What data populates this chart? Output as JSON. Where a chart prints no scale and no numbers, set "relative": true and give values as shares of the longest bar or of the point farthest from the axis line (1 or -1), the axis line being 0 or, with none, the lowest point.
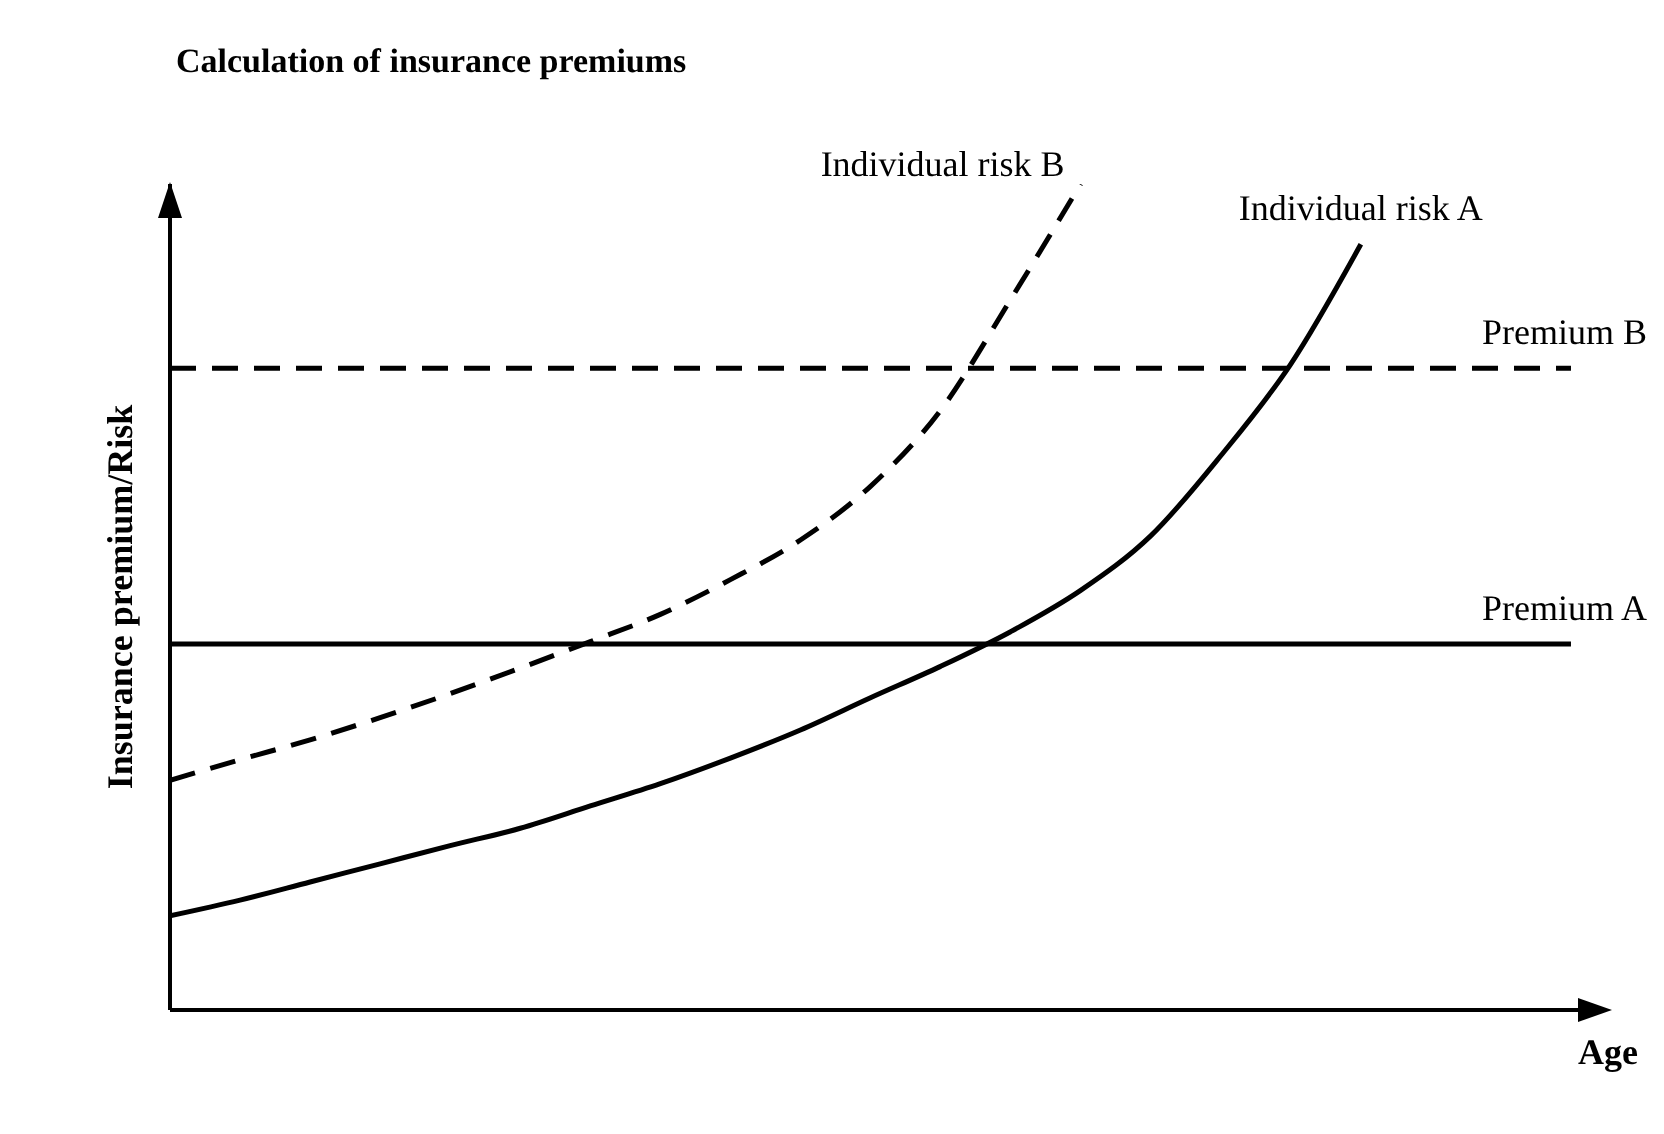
{
  "chart_data": {
    "type": "line",
    "title": "Calculation of insurance premiums",
    "xlabel": "Age",
    "ylabel": "Insurance premium/Risk",
    "relative": true,
    "marker": "none",
    "categories": [
      null,
      null,
      null,
      null,
      null,
      null,
      null,
      null,
      null,
      null,
      null,
      null,
      null,
      null,
      null,
      null,
      null,
      null,
      null,
      null,
      null
    ],
    "series": [
      {
        "name": "Individual risk B",
        "color": "#000000",
        "line_style": "dashed",
        "values": [
          0.278,
          0.303,
          0.327,
          0.354,
          0.383,
          0.414,
          0.446,
          0.479,
          0.521,
          0.569,
          0.634,
          0.726,
          0.86,
          1,
          null,
          null,
          null,
          null,
          null,
          null,
          null
        ]
      },
      {
        "name": "Individual risk A",
        "color": "#000000",
        "line_style": "solid",
        "values": [
          0.114,
          0.133,
          0.155,
          0.177,
          0.199,
          0.22,
          0.247,
          0.274,
          0.305,
          0.339,
          0.378,
          0.416,
          0.458,
          0.508,
          0.574,
          0.671,
          0.782,
          0.927,
          null,
          null,
          null
        ]
      },
      {
        "name": "Premium B",
        "color": "#000000",
        "line_style": "dashed",
        "values": [
          0.777,
          0.777,
          0.777,
          0.777,
          0.777,
          0.777,
          0.777,
          0.777,
          0.777,
          0.777,
          0.777,
          0.777,
          0.777,
          0.777,
          0.777,
          0.777,
          0.777,
          0.777,
          0.777,
          0.777,
          0.777
        ]
      },
      {
        "name": "Premium A",
        "color": "#000000",
        "line_style": "solid",
        "values": [
          0.443,
          0.443,
          0.443,
          0.443,
          0.443,
          0.443,
          0.443,
          0.443,
          0.443,
          0.443,
          0.443,
          0.443,
          0.443,
          0.443,
          0.443,
          0.443,
          0.443,
          0.443,
          0.443,
          0.443,
          0.443
        ]
      }
    ]
  }
}
